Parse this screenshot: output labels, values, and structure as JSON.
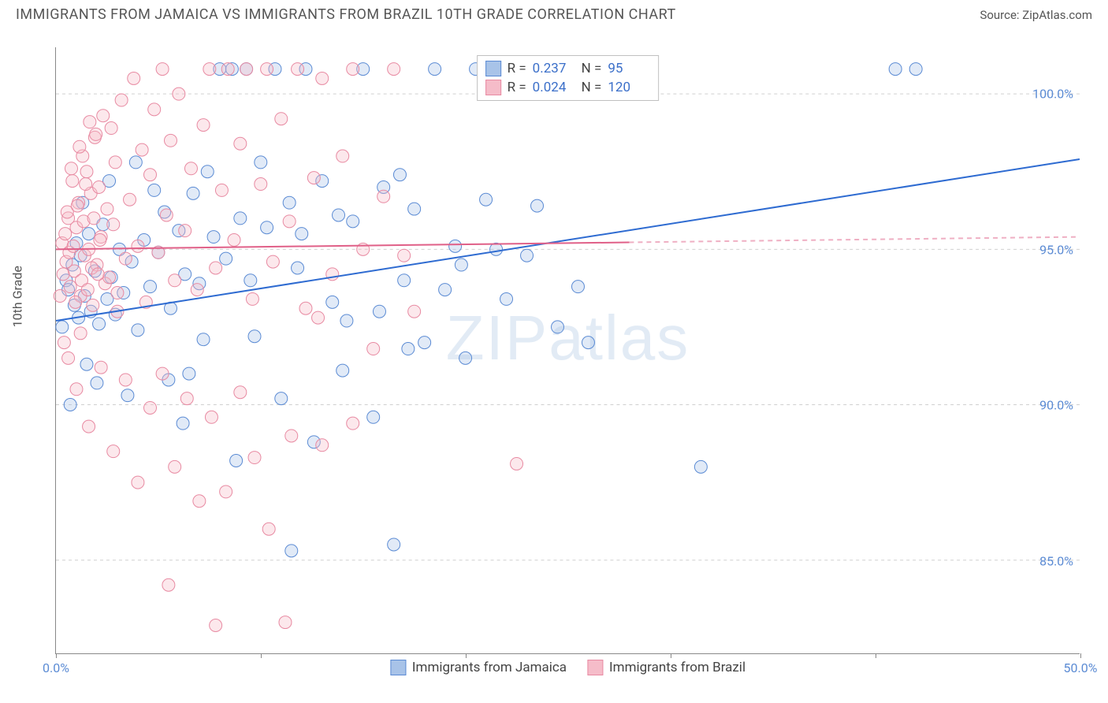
{
  "header": {
    "title": "IMMIGRANTS FROM JAMAICA VS IMMIGRANTS FROM BRAZIL 10TH GRADE CORRELATION CHART",
    "source_prefix": "Source: ",
    "source_name": "ZipAtlas.com"
  },
  "watermark": {
    "part1": "ZIP",
    "part2": "atlas"
  },
  "chart": {
    "type": "scatter",
    "y_axis_title": "10th Grade",
    "background_color": "#ffffff",
    "grid_color": "#d0d0d0",
    "border_color": "#888888",
    "xlim": [
      0,
      50
    ],
    "ylim": [
      82,
      101.5
    ],
    "x_ticks": [
      0,
      10,
      20,
      30,
      40,
      50
    ],
    "x_tick_labels": {
      "0": "0.0%",
      "50": "50.0%"
    },
    "y_ticks": [
      85,
      90,
      95,
      100
    ],
    "y_tick_labels": {
      "85": "85.0%",
      "90": "90.0%",
      "95": "95.0%",
      "100": "100.0%"
    },
    "axis_label_color": "#5b8bd4",
    "axis_label_fontsize": 16,
    "marker_radius": 8,
    "marker_fill_opacity": 0.35,
    "marker_stroke_width": 1,
    "series": [
      {
        "name": "Immigrants from Jamaica",
        "color_fill": "#a8c3e8",
        "color_stroke": "#5b8bd4",
        "r": "0.237",
        "n": "95",
        "trend_line": {
          "x1": 0,
          "y1": 92.7,
          "x2": 50,
          "y2": 97.9,
          "color": "#2e6bd1",
          "width": 2,
          "solid_until_x": 50
        },
        "points": [
          [
            0.5,
            94.0
          ],
          [
            0.6,
            93.7
          ],
          [
            0.8,
            94.5
          ],
          [
            0.9,
            93.2
          ],
          [
            1.0,
            95.2
          ],
          [
            1.1,
            92.8
          ],
          [
            1.2,
            94.8
          ],
          [
            1.4,
            93.5
          ],
          [
            1.6,
            95.5
          ],
          [
            1.7,
            93.0
          ],
          [
            1.9,
            94.3
          ],
          [
            2.1,
            92.6
          ],
          [
            2.3,
            95.8
          ],
          [
            2.5,
            93.4
          ],
          [
            2.7,
            94.1
          ],
          [
            2.9,
            92.9
          ],
          [
            3.1,
            95.0
          ],
          [
            3.3,
            93.6
          ],
          [
            3.7,
            94.6
          ],
          [
            4.0,
            92.4
          ],
          [
            4.3,
            95.3
          ],
          [
            4.6,
            93.8
          ],
          [
            5.0,
            94.9
          ],
          [
            5.3,
            96.2
          ],
          [
            5.6,
            93.1
          ],
          [
            6.0,
            95.6
          ],
          [
            6.3,
            94.2
          ],
          [
            6.7,
            96.8
          ],
          [
            7.0,
            93.9
          ],
          [
            7.4,
            97.5
          ],
          [
            7.7,
            95.4
          ],
          [
            8.0,
            100.8
          ],
          [
            8.3,
            94.7
          ],
          [
            8.6,
            100.8
          ],
          [
            9.0,
            96.0
          ],
          [
            9.3,
            100.8
          ],
          [
            9.7,
            92.2
          ],
          [
            10.0,
            97.8
          ],
          [
            10.3,
            95.7
          ],
          [
            10.7,
            100.8
          ],
          [
            11.0,
            90.2
          ],
          [
            11.4,
            96.5
          ],
          [
            11.8,
            94.4
          ],
          [
            12.2,
            100.8
          ],
          [
            12.6,
            88.8
          ],
          [
            13.0,
            97.2
          ],
          [
            13.5,
            93.3
          ],
          [
            14.0,
            91.1
          ],
          [
            14.5,
            95.9
          ],
          [
            15.0,
            100.8
          ],
          [
            15.5,
            89.6
          ],
          [
            16.0,
            97.0
          ],
          [
            16.5,
            85.5
          ],
          [
            17.0,
            94.0
          ],
          [
            17.5,
            96.3
          ],
          [
            18.0,
            92.0
          ],
          [
            18.5,
            100.8
          ],
          [
            19.0,
            93.7
          ],
          [
            19.5,
            95.1
          ],
          [
            20.0,
            91.5
          ],
          [
            21.0,
            96.6
          ],
          [
            22.0,
            93.4
          ],
          [
            23.0,
            94.8
          ],
          [
            24.5,
            92.5
          ],
          [
            5.5,
            90.8
          ],
          [
            8.8,
            88.2
          ],
          [
            6.2,
            89.4
          ],
          [
            11.5,
            85.3
          ],
          [
            3.5,
            90.3
          ],
          [
            2.0,
            90.7
          ],
          [
            0.7,
            90.0
          ],
          [
            13.8,
            96.1
          ],
          [
            15.8,
            93.0
          ],
          [
            17.2,
            91.8
          ],
          [
            19.8,
            94.5
          ],
          [
            21.5,
            95.0
          ],
          [
            23.5,
            96.4
          ],
          [
            26.0,
            92.0
          ],
          [
            4.8,
            96.9
          ],
          [
            41.0,
            100.8
          ],
          [
            42.0,
            100.8
          ],
          [
            1.3,
            96.5
          ],
          [
            2.6,
            97.2
          ],
          [
            0.3,
            92.5
          ],
          [
            3.9,
            97.8
          ],
          [
            7.2,
            92.1
          ],
          [
            9.5,
            94.0
          ],
          [
            12.0,
            95.5
          ],
          [
            14.2,
            92.7
          ],
          [
            16.8,
            97.4
          ],
          [
            20.5,
            100.8
          ],
          [
            25.5,
            93.8
          ],
          [
            31.5,
            88.0
          ],
          [
            1.5,
            91.3
          ],
          [
            6.5,
            91.0
          ]
        ]
      },
      {
        "name": "Immigrants from Brazil",
        "color_fill": "#f5bcc9",
        "color_stroke": "#e88aa2",
        "r": "0.024",
        "n": "120",
        "trend_line": {
          "x1": 0,
          "y1": 95.0,
          "x2": 50,
          "y2": 95.4,
          "color": "#e06088",
          "width": 2,
          "solid_until_x": 28
        },
        "points": [
          [
            0.3,
            95.2
          ],
          [
            0.5,
            94.6
          ],
          [
            0.6,
            96.0
          ],
          [
            0.7,
            93.8
          ],
          [
            0.8,
            97.2
          ],
          [
            0.9,
            94.3
          ],
          [
            1.0,
            95.7
          ],
          [
            1.1,
            96.5
          ],
          [
            1.2,
            93.5
          ],
          [
            1.3,
            98.0
          ],
          [
            1.4,
            94.8
          ],
          [
            1.5,
            97.5
          ],
          [
            1.6,
            95.0
          ],
          [
            1.7,
            96.8
          ],
          [
            1.8,
            93.2
          ],
          [
            1.9,
            98.6
          ],
          [
            2.0,
            94.5
          ],
          [
            2.1,
            97.0
          ],
          [
            2.2,
            95.4
          ],
          [
            2.3,
            99.3
          ],
          [
            2.4,
            93.9
          ],
          [
            2.5,
            96.3
          ],
          [
            2.6,
            94.1
          ],
          [
            2.7,
            98.9
          ],
          [
            2.8,
            95.8
          ],
          [
            2.9,
            97.8
          ],
          [
            3.0,
            93.6
          ],
          [
            3.2,
            99.8
          ],
          [
            3.4,
            94.7
          ],
          [
            3.6,
            96.6
          ],
          [
            3.8,
            100.5
          ],
          [
            4.0,
            95.1
          ],
          [
            4.2,
            98.2
          ],
          [
            4.4,
            93.3
          ],
          [
            4.6,
            97.4
          ],
          [
            4.8,
            99.5
          ],
          [
            5.0,
            94.9
          ],
          [
            5.2,
            100.8
          ],
          [
            5.4,
            96.1
          ],
          [
            5.6,
            98.5
          ],
          [
            5.8,
            94.0
          ],
          [
            6.0,
            100.0
          ],
          [
            6.3,
            95.6
          ],
          [
            6.6,
            97.6
          ],
          [
            6.9,
            93.7
          ],
          [
            7.2,
            99.0
          ],
          [
            7.5,
            100.8
          ],
          [
            7.8,
            94.4
          ],
          [
            8.1,
            96.9
          ],
          [
            8.4,
            100.8
          ],
          [
            8.7,
            95.3
          ],
          [
            9.0,
            98.4
          ],
          [
            9.3,
            100.8
          ],
          [
            9.6,
            93.4
          ],
          [
            10.0,
            97.1
          ],
          [
            10.3,
            100.8
          ],
          [
            10.6,
            94.6
          ],
          [
            11.0,
            99.2
          ],
          [
            11.4,
            95.9
          ],
          [
            11.8,
            100.8
          ],
          [
            12.2,
            93.1
          ],
          [
            12.6,
            97.3
          ],
          [
            13.0,
            100.5
          ],
          [
            13.5,
            94.2
          ],
          [
            14.0,
            98.0
          ],
          [
            14.5,
            100.8
          ],
          [
            15.0,
            95.0
          ],
          [
            15.5,
            91.8
          ],
          [
            16.0,
            96.7
          ],
          [
            16.5,
            100.8
          ],
          [
            17.0,
            94.8
          ],
          [
            17.5,
            93.0
          ],
          [
            0.4,
            92.0
          ],
          [
            1.0,
            90.5
          ],
          [
            1.6,
            89.3
          ],
          [
            2.2,
            91.2
          ],
          [
            2.8,
            88.5
          ],
          [
            3.4,
            90.8
          ],
          [
            4.0,
            87.5
          ],
          [
            4.6,
            89.9
          ],
          [
            5.2,
            91.0
          ],
          [
            5.8,
            88.0
          ],
          [
            6.4,
            90.2
          ],
          [
            7.0,
            86.9
          ],
          [
            7.6,
            89.6
          ],
          [
            8.3,
            87.2
          ],
          [
            9.0,
            90.4
          ],
          [
            9.7,
            88.3
          ],
          [
            10.4,
            86.0
          ],
          [
            11.2,
            83.0
          ],
          [
            5.5,
            84.2
          ],
          [
            7.8,
            82.9
          ],
          [
            3.0,
            93.0
          ],
          [
            0.6,
            91.5
          ],
          [
            1.2,
            92.3
          ],
          [
            13.0,
            88.7
          ],
          [
            11.5,
            89.0
          ],
          [
            12.8,
            92.8
          ],
          [
            22.5,
            88.1
          ],
          [
            14.5,
            89.4
          ],
          [
            0.2,
            93.5
          ],
          [
            0.35,
            94.2
          ],
          [
            0.45,
            95.5
          ],
          [
            0.55,
            96.2
          ],
          [
            0.65,
            94.9
          ],
          [
            0.75,
            97.6
          ],
          [
            0.85,
            95.1
          ],
          [
            0.95,
            93.3
          ],
          [
            1.05,
            96.4
          ],
          [
            1.15,
            98.3
          ],
          [
            1.25,
            94.0
          ],
          [
            1.35,
            95.9
          ],
          [
            1.45,
            97.1
          ],
          [
            1.55,
            93.7
          ],
          [
            1.65,
            99.1
          ],
          [
            1.75,
            94.4
          ],
          [
            1.85,
            96.0
          ],
          [
            1.95,
            98.7
          ],
          [
            2.05,
            94.2
          ],
          [
            2.15,
            95.3
          ]
        ]
      }
    ]
  },
  "legend_top": {
    "r_label": "R =",
    "n_label": "N ="
  },
  "legend_bottom": {}
}
